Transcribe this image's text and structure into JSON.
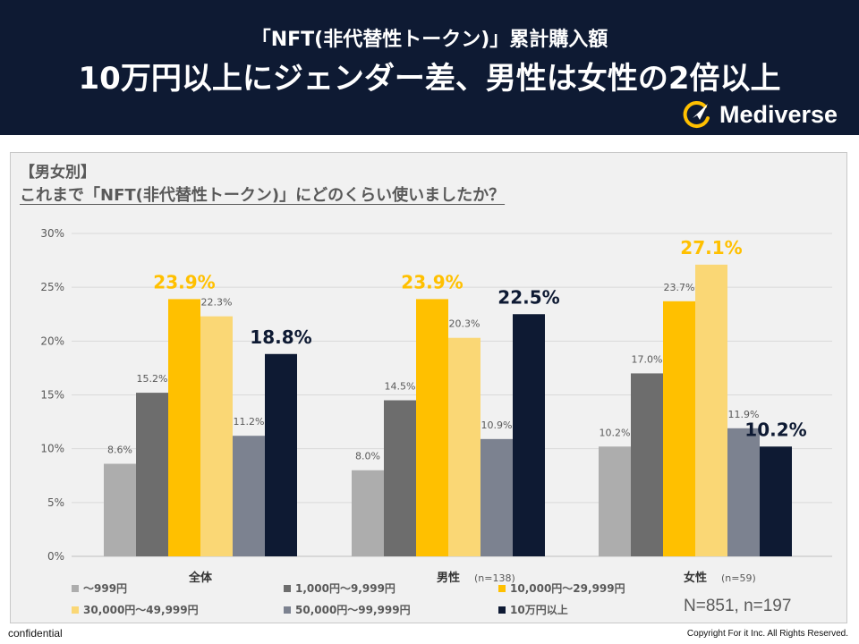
{
  "header": {
    "subtitle": "「NFT(非代替性トークン)」累計購入額",
    "title": "10万円以上にジェンダー差、男性は女性の2倍以上",
    "brand": "Mediverse"
  },
  "section_label": "【男女別】",
  "question": "これまで「NFT(非代替性トークン)」にどのくらい使いましたか？",
  "sample_note": "N=851, n=197",
  "footer": {
    "left": "confidential",
    "right": "Copyright For it Inc. All Rights Reserved."
  },
  "colors": {
    "header_bg": "#0e1a33",
    "highlight_yellow": "#ffc000",
    "highlight_navy": "#0e1a33",
    "value_gray": "#595959"
  },
  "chart_data": {
    "type": "bar",
    "ylim": [
      0,
      30
    ],
    "yticks": [
      0,
      5,
      10,
      15,
      20,
      25,
      30
    ],
    "ytick_labels": [
      "0%",
      "5%",
      "10%",
      "15%",
      "20%",
      "25%",
      "30%"
    ],
    "groups": [
      {
        "label": "全体",
        "n_label": ""
      },
      {
        "label": "男性",
        "n_label": "(n=138)"
      },
      {
        "label": "女性",
        "n_label": "(n=59)"
      }
    ],
    "series": [
      {
        "name": "～999円",
        "color": "#adadad",
        "values": [
          8.6,
          8.0,
          10.2
        ],
        "labels": [
          "8.6%",
          "8.0%",
          "10.2%"
        ]
      },
      {
        "name": "1,000円～9,999円",
        "color": "#6d6d6d",
        "values": [
          15.2,
          14.5,
          17.0
        ],
        "labels": [
          "15.2%",
          "14.5%",
          "17.0%"
        ]
      },
      {
        "name": "10,000円～29,999円",
        "color": "#ffc000",
        "values": [
          23.9,
          23.9,
          23.7
        ],
        "labels": [
          "23.9%",
          "23.9%",
          "23.7%"
        ]
      },
      {
        "name": "30,000円～49,999円",
        "color": "#fad775",
        "values": [
          22.3,
          20.3,
          27.1
        ],
        "labels": [
          "22.3%",
          "20.3%",
          "27.1%"
        ]
      },
      {
        "name": "50,000円～99,999円",
        "color": "#7c8290",
        "values": [
          11.2,
          10.9,
          11.9
        ],
        "labels": [
          "11.2%",
          "10.9%",
          "11.9%"
        ]
      },
      {
        "name": "10万円以上",
        "color": "#0e1a33",
        "values": [
          18.8,
          22.5,
          10.2
        ],
        "labels": [
          "18.8%",
          "22.5%",
          "10.2%"
        ]
      }
    ],
    "highlights": [
      {
        "group": 0,
        "series": 2,
        "color": "#ffc000"
      },
      {
        "group": 0,
        "series": 5,
        "color": "#0e1a33"
      },
      {
        "group": 1,
        "series": 2,
        "color": "#ffc000"
      },
      {
        "group": 1,
        "series": 5,
        "color": "#0e1a33"
      },
      {
        "group": 2,
        "series": 3,
        "color": "#ffc000"
      },
      {
        "group": 2,
        "series": 5,
        "color": "#0e1a33"
      }
    ]
  }
}
